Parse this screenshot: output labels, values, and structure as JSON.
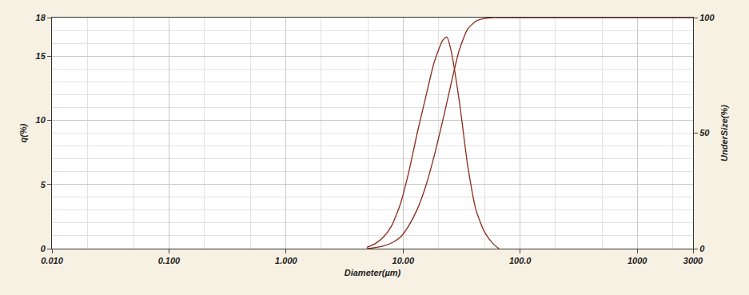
{
  "chart_data": {
    "type": "line",
    "x_label": "Diameter(µm)",
    "y_label": "q(%)",
    "y2_label": "UnderSize(%)",
    "x": [
      4.9,
      5.8,
      6.8,
      8.0,
      9.5,
      11.2,
      13.2,
      15.6,
      18.4,
      21.7,
      23.6,
      25.6,
      30.2,
      35.6,
      42,
      49.6,
      58.5,
      66,
      3000
    ],
    "series": [
      {
        "color": "#8b2a1a",
        "values": [
          0.1,
          0.4,
          0.9,
          1.8,
          3.5,
          6,
          9,
          11.8,
          14.5,
          16.2,
          16.5,
          15.5,
          11.5,
          6.5,
          3,
          1.3,
          0.4,
          0,
          null
        ]
      },
      {
        "color": "#8b2a1a",
        "axis": "y2",
        "values": [
          0,
          0.5,
          1.2,
          2.5,
          5,
          10,
          17,
          27,
          40,
          55,
          63,
          71,
          86,
          95,
          98.5,
          99.6,
          100,
          100,
          100
        ]
      }
    ],
    "log": "x",
    "xlim": [
      0.01,
      3000
    ],
    "xticks": [
      {
        "value": 0.01,
        "label": "0.010"
      },
      {
        "value": 0.1,
        "label": "0.100"
      },
      {
        "value": 1,
        "label": "1.000"
      },
      {
        "value": 10,
        "label": "10.00"
      },
      {
        "value": 100,
        "label": "100.0"
      },
      1000,
      3000
    ],
    "ylim": [
      0,
      18
    ],
    "yticks": [
      0,
      5,
      10,
      15,
      18
    ],
    "y2lim": [
      0,
      100
    ],
    "y2ticks": [
      0,
      50,
      100
    ],
    "grid": true
  }
}
